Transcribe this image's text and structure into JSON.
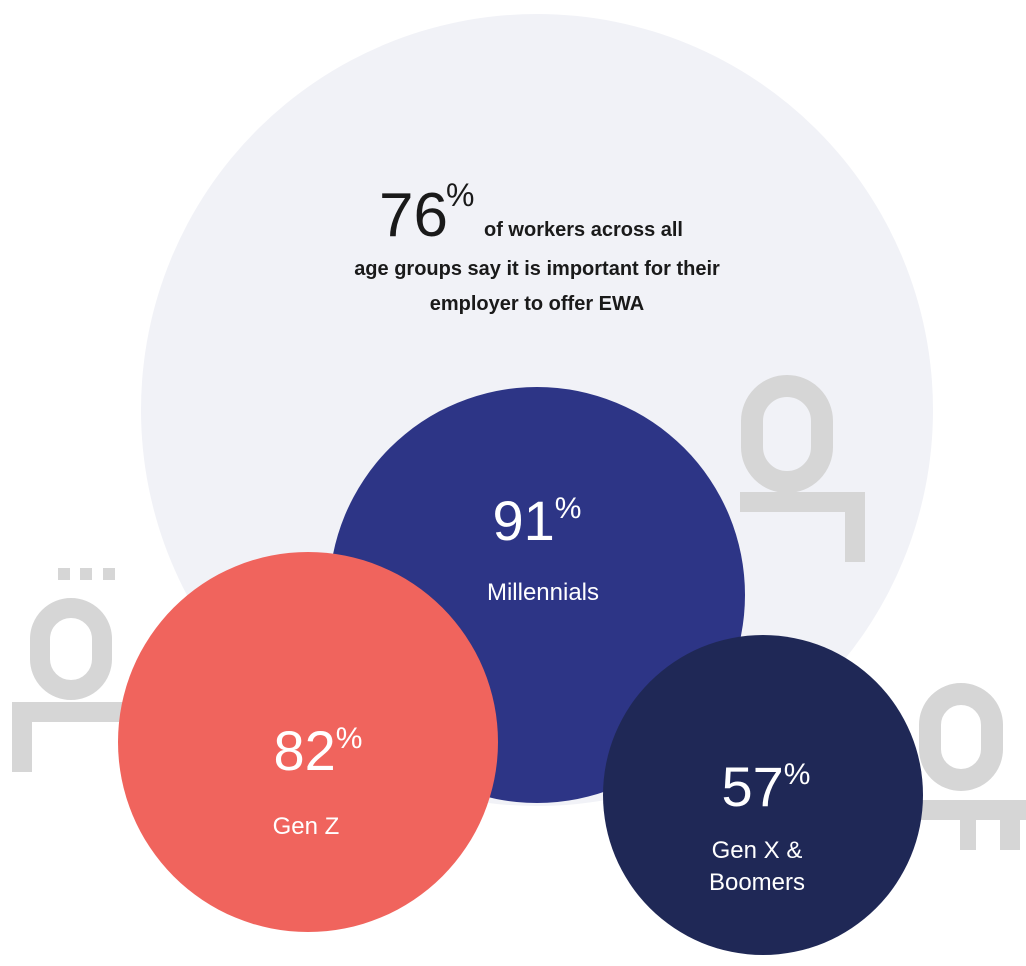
{
  "headline": {
    "value": "76",
    "unit": "%",
    "lines": [
      "of workers across all",
      "age groups say it is important for their",
      "employer to offer EWA"
    ]
  },
  "groups": [
    {
      "value": "91",
      "unit": "%",
      "label_lines": [
        "Millennials"
      ]
    },
    {
      "value": "82",
      "unit": "%",
      "label_lines": [
        "Gen Z"
      ]
    },
    {
      "value": "57",
      "unit": "%",
      "label_lines": [
        "Gen X &",
        "Boomers"
      ]
    }
  ]
}
